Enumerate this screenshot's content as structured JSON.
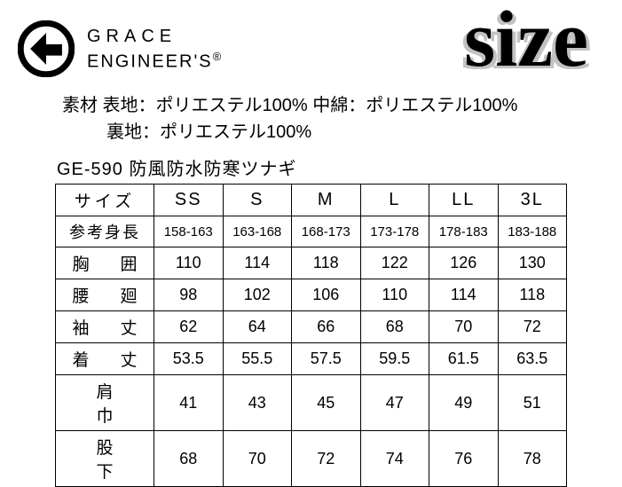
{
  "brand": {
    "line1": "GRACE",
    "line2": "ENGINEER'S",
    "registered": "®"
  },
  "size_word": "size",
  "material": {
    "line1": "素材 表地：ポリエステル100% 中綿：ポリエステル100%",
    "line2": "裏地：ポリエステル100%"
  },
  "product": "GE-590  防風防水防寒ツナギ",
  "table": {
    "header": [
      "サイズ",
      "SS",
      "S",
      "M",
      "L",
      "LL",
      "3L"
    ],
    "rows": [
      {
        "label": "参考身長",
        "cells": [
          "158-163",
          "163-168",
          "168-173",
          "173-178",
          "178-183",
          "183-188"
        ],
        "cls": "ref-height",
        "lcls": ""
      },
      {
        "label": "胸　囲",
        "cells": [
          "110",
          "114",
          "118",
          "122",
          "126",
          "130"
        ],
        "cls": "",
        "lcls": "sp-mid"
      },
      {
        "label": "腰　廻",
        "cells": [
          "98",
          "102",
          "106",
          "110",
          "114",
          "118"
        ],
        "cls": "",
        "lcls": "sp-mid"
      },
      {
        "label": "袖　丈",
        "cells": [
          "62",
          "64",
          "66",
          "68",
          "70",
          "72"
        ],
        "cls": "",
        "lcls": "sp-mid"
      },
      {
        "label": "着　丈",
        "cells": [
          "53.5",
          "55.5",
          "57.5",
          "59.5",
          "61.5",
          "63.5"
        ],
        "cls": "",
        "lcls": "sp-mid"
      },
      {
        "label": "肩　巾",
        "cells": [
          "41",
          "43",
          "45",
          "47",
          "49",
          "51"
        ],
        "cls": "",
        "lcls": "sp-wide"
      },
      {
        "label": "股　下",
        "cells": [
          "68",
          "70",
          "72",
          "74",
          "76",
          "78"
        ],
        "cls": "",
        "lcls": "sp-wide"
      }
    ]
  },
  "colors": {
    "text": "#000000",
    "bg": "#ffffff",
    "shadow": "#c0c2c4",
    "border": "#000000"
  }
}
